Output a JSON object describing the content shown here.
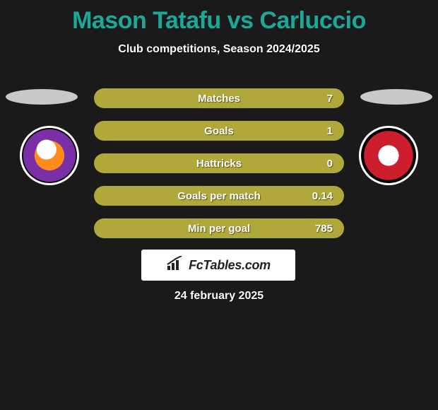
{
  "title": {
    "player1": "Mason Tatafu",
    "vs": "vs",
    "player2": "Carluccio",
    "player1_color": "#1aa899",
    "vs_color": "#1aa899",
    "player2_color": "#1aa899"
  },
  "subtitle": "Club competitions, Season 2024/2025",
  "stats": [
    {
      "label": "Matches",
      "value": "7",
      "fill_pct": 100,
      "fill_color": "#b0a83a",
      "bg_color": "#b0a83a"
    },
    {
      "label": "Goals",
      "value": "1",
      "fill_pct": 100,
      "fill_color": "#b0a83a",
      "bg_color": "#b0a83a"
    },
    {
      "label": "Hattricks",
      "value": "0",
      "fill_pct": 100,
      "fill_color": "#b0a83a",
      "bg_color": "#b0a83a"
    },
    {
      "label": "Goals per match",
      "value": "0.14",
      "fill_pct": 100,
      "fill_color": "#b0a83a",
      "bg_color": "#b0a83a"
    },
    {
      "label": "Min per goal",
      "value": "785",
      "fill_pct": 100,
      "fill_color": "#b0a83a",
      "bg_color": "#b0a83a"
    }
  ],
  "watermark": {
    "text": "FcTables.com",
    "icon_name": "chart-icon"
  },
  "date": "24 february 2025",
  "colors": {
    "background": "#1a1a1a",
    "text": "#ffffff",
    "ellipse": "#c9c9c9",
    "watermark_bg": "#ffffff"
  }
}
